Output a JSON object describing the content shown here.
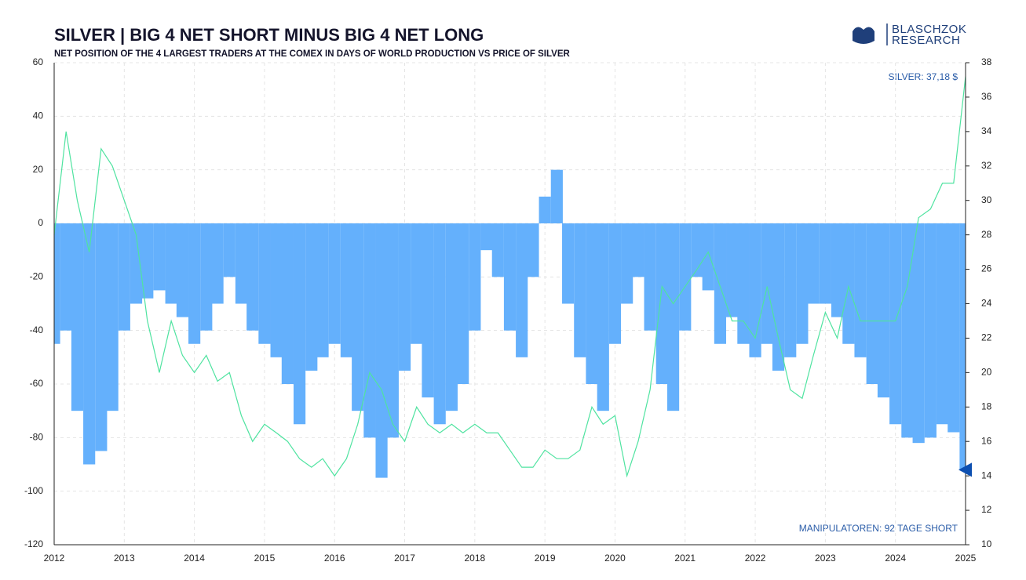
{
  "chart_data": {
    "type": "bar",
    "title": "SILVER | BIG 4 NET SHORT MINUS BIG 4 NET LONG",
    "subtitle": "NET POSITION OF THE 4 LARGEST TRADERS AT THE COMEX IN DAYS OF WORLD PRODUCTION VS PRICE OF SILVER",
    "brand": [
      "BLASCHZOK",
      "RESEARCH"
    ],
    "annotations": [
      "SILVER: 37,18 $",
      "MANIPULATOREN: 92 TAGE SHORT"
    ],
    "x": [
      2012,
      2012.17,
      2012.33,
      2012.5,
      2012.67,
      2012.83,
      2013,
      2013.17,
      2013.33,
      2013.5,
      2013.67,
      2013.83,
      2014,
      2014.17,
      2014.33,
      2014.5,
      2014.67,
      2014.83,
      2015,
      2015.17,
      2015.33,
      2015.5,
      2015.67,
      2015.83,
      2016,
      2016.17,
      2016.33,
      2016.5,
      2016.67,
      2016.83,
      2017,
      2017.17,
      2017.33,
      2017.5,
      2017.67,
      2017.83,
      2018,
      2018.17,
      2018.33,
      2018.5,
      2018.67,
      2018.83,
      2019,
      2019.17,
      2019.33,
      2019.5,
      2019.67,
      2019.83,
      2020,
      2020.17,
      2020.33,
      2020.5,
      2020.67,
      2020.83,
      2021,
      2021.17,
      2021.33,
      2021.5,
      2021.67,
      2021.83,
      2022,
      2022.17,
      2022.33,
      2022.5,
      2022.67,
      2022.83,
      2023,
      2023.17,
      2023.33,
      2023.5,
      2023.67,
      2023.83,
      2024,
      2024.17,
      2024.33,
      2024.5,
      2024.67,
      2024.83,
      2025
    ],
    "series": [
      {
        "type": "bar",
        "color": "#64b0fc",
        "values": [
          -45,
          -40,
          -70,
          -90,
          -85,
          -70,
          -40,
          -30,
          -28,
          -25,
          -30,
          -35,
          -45,
          -40,
          -30,
          -20,
          -30,
          -40,
          -45,
          -50,
          -60,
          -75,
          -55,
          -50,
          -45,
          -50,
          -70,
          -80,
          -95,
          -80,
          -55,
          -45,
          -65,
          -75,
          -70,
          -60,
          -40,
          -10,
          -20,
          -40,
          -50,
          -20,
          10,
          20,
          -30,
          -50,
          -60,
          -70,
          -45,
          -30,
          -20,
          -40,
          -60,
          -70,
          -40,
          -20,
          -25,
          -45,
          -35,
          -45,
          -50,
          -45,
          -55,
          -50,
          -45,
          -30,
          -30,
          -35,
          -45,
          -50,
          -60,
          -65,
          -75,
          -80,
          -82,
          -80,
          -75,
          -78,
          -92
        ]
      },
      {
        "type": "line",
        "axis": "y2",
        "color": "#4fe3a0",
        "values": [
          28,
          34,
          30,
          27,
          33,
          32,
          30,
          28,
          23,
          20,
          23,
          21,
          20,
          21,
          19.5,
          20,
          17.5,
          16,
          17,
          16.5,
          16,
          15,
          14.5,
          15,
          14,
          15,
          17,
          20,
          19,
          17,
          16,
          18,
          17,
          16.5,
          17,
          16.5,
          17,
          16.5,
          16.5,
          15.5,
          14.5,
          14.5,
          15.5,
          15,
          15,
          15.5,
          18,
          17,
          17.5,
          14,
          16,
          19,
          25,
          24,
          25,
          26,
          27,
          25,
          23,
          23,
          22,
          25,
          22,
          19,
          18.5,
          21,
          23.5,
          22,
          25,
          23,
          23,
          23,
          23,
          25,
          29,
          29.5,
          31,
          31,
          37.2
        ]
      }
    ],
    "xlim": [
      2012,
      2025
    ],
    "xticks": [
      2012,
      2013,
      2014,
      2015,
      2016,
      2017,
      2018,
      2019,
      2020,
      2021,
      2022,
      2023,
      2024,
      2025
    ],
    "ylim": [
      -120,
      60
    ],
    "yticks": [
      -120,
      -100,
      -80,
      -60,
      -40,
      -20,
      0,
      20,
      40,
      60
    ],
    "y2lim": [
      10,
      38
    ],
    "y2ticks": [
      10,
      12,
      14,
      16,
      18,
      20,
      22,
      24,
      26,
      28,
      30,
      32,
      34,
      36,
      38
    ],
    "grid": true
  }
}
